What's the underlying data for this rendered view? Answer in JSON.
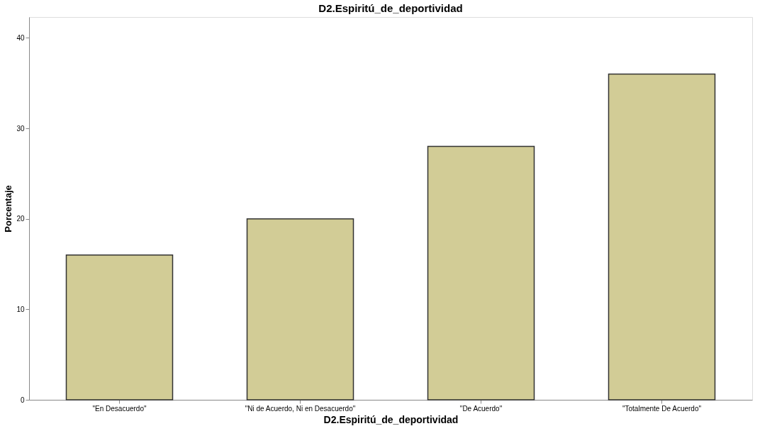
{
  "chart_data": {
    "type": "bar",
    "title": "D2.Espiritú_de_deportividad",
    "xlabel": "D2.Espiritú_de_deportividad",
    "ylabel": "Porcentaje",
    "categories": [
      "\"En Desacuerdo\"",
      "\"Ni de Acuerdo, Ni en Desacuerdo\"",
      "\"De Acuerdo\"",
      "\"Totalmente De Acuerdo\""
    ],
    "values": [
      16,
      20,
      28,
      36
    ],
    "color": "#d2cc96",
    "ylim": [
      0,
      42.3
    ],
    "yticks": [
      0,
      10,
      20,
      30,
      40
    ],
    "grid": false
  }
}
